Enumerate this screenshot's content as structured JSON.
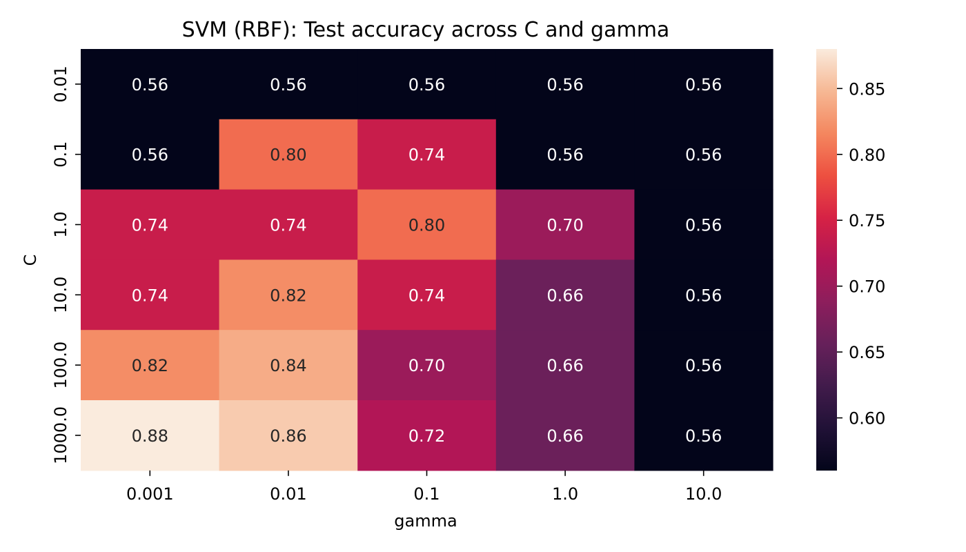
{
  "chart_data": {
    "type": "heatmap",
    "title": "SVM (RBF): Test accuracy across C and gamma",
    "xlabel": "gamma",
    "ylabel": "C",
    "x_categories": [
      "0.001",
      "0.01",
      "0.1",
      "1.0",
      "10.0"
    ],
    "y_categories": [
      "0.01",
      "0.1",
      "1.0",
      "10.0",
      "100.0",
      "1000.0"
    ],
    "values": [
      [
        0.56,
        0.56,
        0.56,
        0.56,
        0.56
      ],
      [
        0.56,
        0.8,
        0.74,
        0.56,
        0.56
      ],
      [
        0.74,
        0.74,
        0.8,
        0.7,
        0.56
      ],
      [
        0.74,
        0.82,
        0.74,
        0.66,
        0.56
      ],
      [
        0.82,
        0.84,
        0.7,
        0.66,
        0.56
      ],
      [
        0.88,
        0.86,
        0.72,
        0.66,
        0.56
      ]
    ],
    "colorbar": {
      "range": [
        0.56,
        0.88
      ],
      "ticks": [
        "0.60",
        "0.65",
        "0.70",
        "0.75",
        "0.80",
        "0.85"
      ],
      "tick_values": [
        0.6,
        0.65,
        0.7,
        0.75,
        0.8,
        0.85
      ]
    },
    "colormap": "rocket",
    "annotation_format": "0.00"
  }
}
